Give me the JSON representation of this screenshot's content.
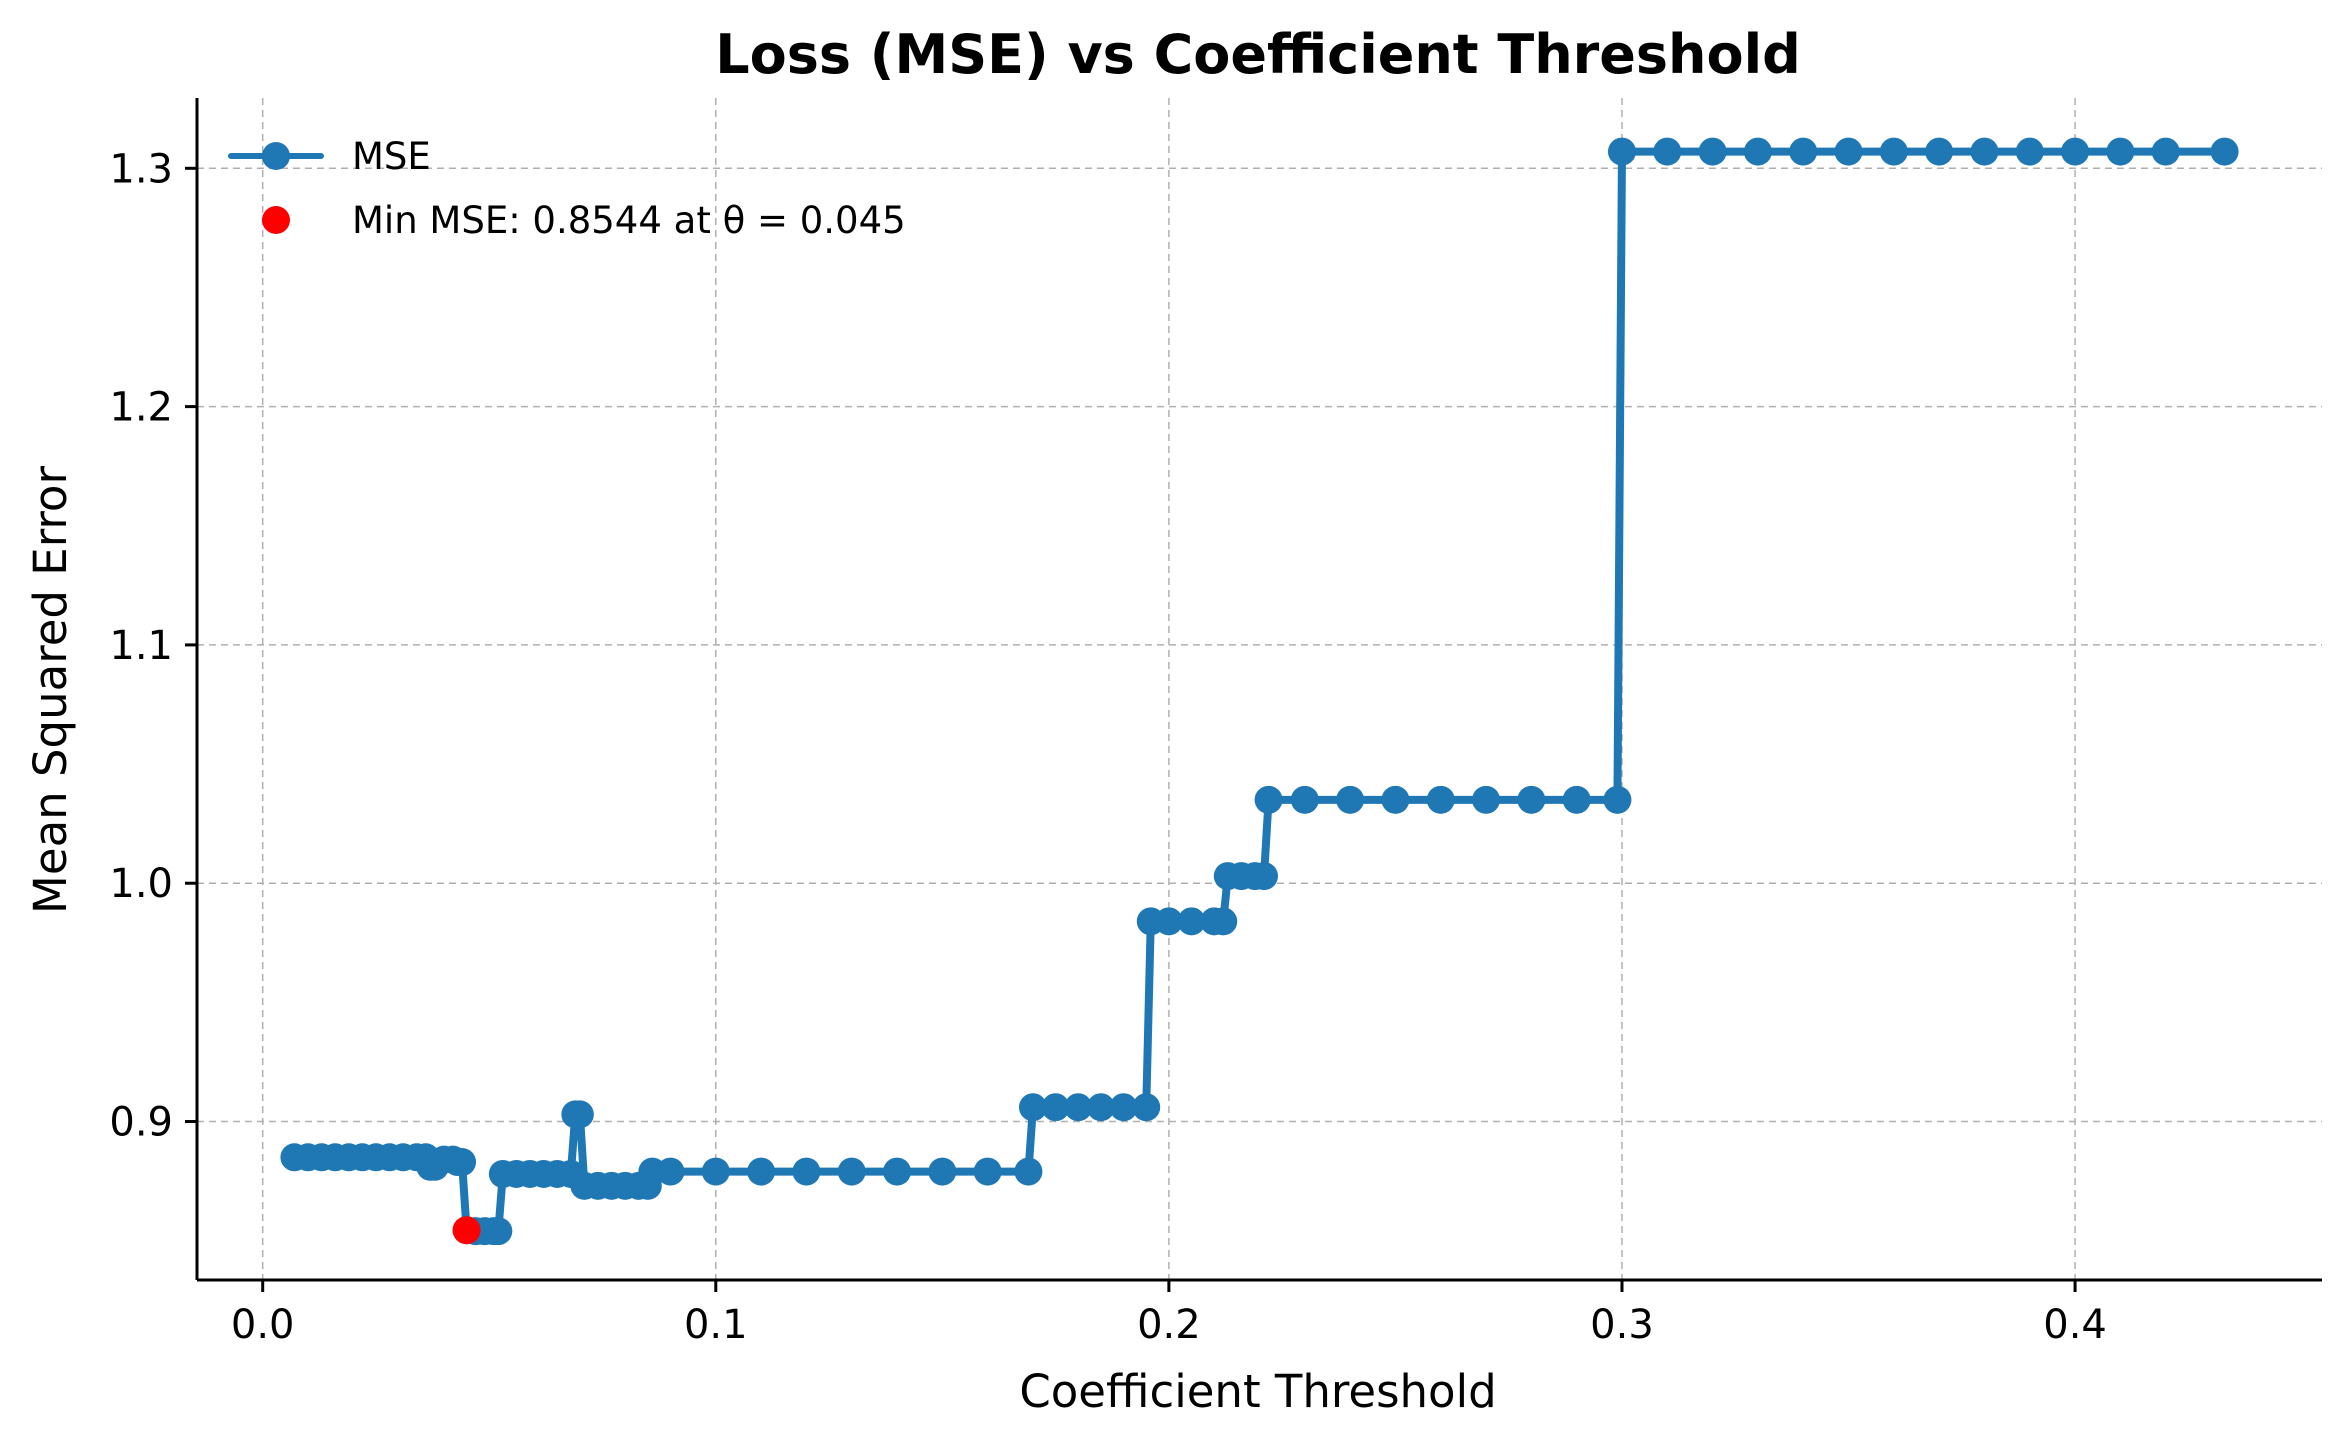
{
  "chart_data": {
    "type": "line",
    "title": "Loss (MSE) vs Coefficient Threshold",
    "xlabel": "Coefficient Threshold",
    "ylabel": "Mean Squared Error",
    "xlim": [
      -0.0145,
      0.4545
    ],
    "ylim": [
      0.8335,
      1.3295
    ],
    "xticks": [
      0.0,
      0.1,
      0.2,
      0.3,
      0.4
    ],
    "xtick_labels": [
      "0.0",
      "0.1",
      "0.2",
      "0.3",
      "0.4"
    ],
    "yticks": [
      0.9,
      1.0,
      1.1,
      1.2,
      1.3
    ],
    "ytick_labels": [
      "0.9",
      "1.0",
      "1.1",
      "1.2",
      "1.3"
    ],
    "grid": true,
    "legend_position": "top-left",
    "series": [
      {
        "name": "MSE",
        "color": "#1f77b4",
        "marker": "circle",
        "x": [
          0.007,
          0.01,
          0.013,
          0.016,
          0.019,
          0.022,
          0.025,
          0.028,
          0.031,
          0.034,
          0.036,
          0.037,
          0.038,
          0.04,
          0.042,
          0.043,
          0.044,
          0.045,
          0.047,
          0.049,
          0.051,
          0.052,
          0.053,
          0.056,
          0.059,
          0.062,
          0.065,
          0.068,
          0.069,
          0.07,
          0.071,
          0.074,
          0.077,
          0.08,
          0.083,
          0.085,
          0.086,
          0.09,
          0.1,
          0.11,
          0.12,
          0.13,
          0.14,
          0.15,
          0.16,
          0.169,
          0.17,
          0.175,
          0.18,
          0.185,
          0.19,
          0.195,
          0.196,
          0.2,
          0.205,
          0.21,
          0.212,
          0.213,
          0.216,
          0.219,
          0.221,
          0.222,
          0.23,
          0.24,
          0.25,
          0.26,
          0.27,
          0.28,
          0.29,
          0.299,
          0.3,
          0.31,
          0.32,
          0.33,
          0.34,
          0.35,
          0.36,
          0.37,
          0.38,
          0.39,
          0.4,
          0.41,
          0.42,
          0.433
        ],
        "y": [
          0.885,
          0.885,
          0.885,
          0.885,
          0.885,
          0.885,
          0.885,
          0.885,
          0.885,
          0.885,
          0.885,
          0.881,
          0.881,
          0.884,
          0.884,
          0.883,
          0.883,
          0.8544,
          0.854,
          0.854,
          0.854,
          0.854,
          0.878,
          0.878,
          0.878,
          0.878,
          0.878,
          0.878,
          0.903,
          0.903,
          0.873,
          0.873,
          0.873,
          0.873,
          0.873,
          0.873,
          0.879,
          0.879,
          0.879,
          0.879,
          0.879,
          0.879,
          0.879,
          0.879,
          0.879,
          0.879,
          0.906,
          0.906,
          0.906,
          0.906,
          0.906,
          0.906,
          0.984,
          0.984,
          0.984,
          0.984,
          0.984,
          1.003,
          1.003,
          1.003,
          1.003,
          1.035,
          1.035,
          1.035,
          1.035,
          1.035,
          1.035,
          1.035,
          1.035,
          1.035,
          1.307,
          1.307,
          1.307,
          1.307,
          1.307,
          1.307,
          1.307,
          1.307,
          1.307,
          1.307,
          1.307,
          1.307,
          1.307,
          1.307
        ]
      },
      {
        "name": "Min MSE: 0.8544 at θ = 0.045",
        "color": "#ff0000",
        "marker": "circle",
        "x": [
          0.045
        ],
        "y": [
          0.8544
        ]
      }
    ]
  }
}
